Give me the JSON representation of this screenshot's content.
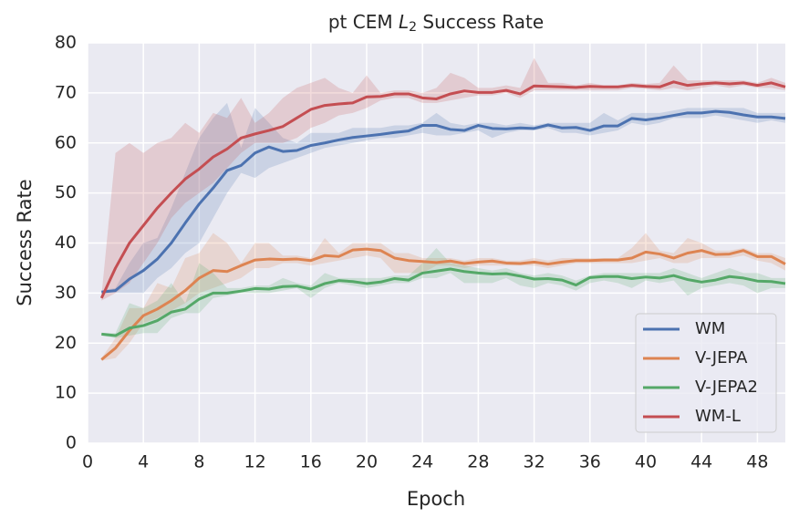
{
  "chart_data": {
    "type": "line",
    "title": [
      "pt CEM",
      "L",
      "2",
      "Success Rate"
    ],
    "x_label": "Epoch",
    "y_label": "Success Rate",
    "x": [
      1,
      2,
      3,
      4,
      5,
      6,
      7,
      8,
      9,
      10,
      11,
      12,
      13,
      14,
      15,
      16,
      17,
      18,
      19,
      20,
      21,
      22,
      23,
      24,
      25,
      26,
      27,
      28,
      29,
      30,
      31,
      32,
      33,
      34,
      35,
      36,
      37,
      38,
      39,
      40,
      41,
      42,
      43,
      44,
      45,
      46,
      47,
      48,
      49,
      50
    ],
    "xlim": [
      0,
      50
    ],
    "xticks": [
      0,
      4,
      8,
      12,
      16,
      20,
      24,
      28,
      32,
      36,
      40,
      44,
      48
    ],
    "ylim": [
      0,
      80
    ],
    "yticks": [
      0,
      10,
      20,
      30,
      40,
      50,
      60,
      70,
      80
    ],
    "grid": true,
    "legend": "lower right",
    "series": [
      {
        "name": "WM",
        "color": "#4c72b0",
        "values": [
          30.2,
          30.5,
          32.8,
          34.5,
          36.8,
          40,
          44,
          47.8,
          51,
          54.5,
          55.5,
          58,
          59.2,
          58.3,
          58.5,
          59.5,
          60,
          60.6,
          61.1,
          61.4,
          61.7,
          62.1,
          62.4,
          63.5,
          63.5,
          62.7,
          62.5,
          63.5,
          62.9,
          62.8,
          63,
          62.9,
          63.6,
          63,
          63.1,
          62.5,
          63.4,
          63.4,
          64.9,
          64.6,
          65,
          65.5,
          66,
          66,
          66.3,
          66.1,
          65.6,
          65.2,
          65.2,
          64.9
        ],
        "upper": [
          30.5,
          31,
          36,
          40,
          41,
          47,
          54,
          61,
          65,
          68,
          59,
          67,
          64,
          61,
          60,
          62,
          62,
          62,
          63,
          63,
          63,
          63.5,
          63.5,
          64,
          66,
          64,
          63.5,
          64,
          64,
          63.5,
          64,
          63.5,
          64,
          64,
          64,
          64,
          66,
          64.5,
          66,
          66,
          66,
          66.5,
          67,
          67,
          67,
          67,
          67,
          66,
          66,
          66
        ],
        "lower": [
          30,
          30,
          30,
          30,
          33,
          35,
          38,
          40,
          45,
          50,
          54,
          53,
          55,
          56,
          57,
          58,
          59,
          59.5,
          60,
          60.5,
          61,
          61,
          61.5,
          62,
          61.5,
          61.5,
          62,
          62.5,
          61,
          62,
          62.5,
          62.5,
          63,
          62,
          62,
          61.5,
          62,
          62.5,
          64,
          63.5,
          64,
          65,
          65,
          65,
          65.5,
          65,
          64.5,
          64,
          64.5,
          64
        ]
      },
      {
        "name": "V-JEPA",
        "color": "#dd8452",
        "values": [
          16.7,
          19,
          22.5,
          25.5,
          26.8,
          28.5,
          30.5,
          33,
          34.5,
          34.3,
          35.5,
          36.6,
          36.8,
          36.7,
          36.8,
          36.5,
          37.5,
          37.3,
          38.6,
          38.8,
          38.5,
          37,
          36.5,
          36.3,
          36.1,
          36.4,
          35.9,
          36.2,
          36.4,
          36,
          35.9,
          36.2,
          35.8,
          36.2,
          36.5,
          36.5,
          36.6,
          36.6,
          37,
          38.2,
          37.8,
          37,
          38,
          38.5,
          37.7,
          37.8,
          38.5,
          37.3,
          37.3,
          35.8
        ],
        "upper": [
          17,
          21,
          27,
          27,
          32,
          31,
          37,
          38,
          42,
          40,
          36,
          40,
          40,
          37.5,
          37.5,
          37,
          41,
          38,
          40,
          40,
          40,
          38,
          38,
          37,
          37,
          37,
          36.5,
          37,
          37,
          36.5,
          36.5,
          37,
          36.5,
          37,
          37,
          37,
          37,
          37,
          39,
          42,
          38.5,
          38,
          41,
          40,
          38.5,
          38.5,
          39,
          38,
          38,
          37
        ],
        "lower": [
          16.5,
          17,
          20,
          24,
          25,
          26.5,
          28,
          30,
          31,
          32,
          33,
          35,
          35,
          36,
          36,
          35.5,
          36,
          36.5,
          37,
          37.5,
          37,
          34,
          34,
          34,
          35.5,
          35.5,
          35,
          35.5,
          35.5,
          35.5,
          35.5,
          35.5,
          35,
          35.5,
          36,
          36,
          36,
          36,
          36,
          36.5,
          37,
          36,
          36,
          37,
          37,
          37,
          37.5,
          36.5,
          36,
          34.5
        ]
      },
      {
        "name": "V-JEPA2",
        "color": "#55a868",
        "values": [
          21.8,
          21.5,
          23,
          23.5,
          24.5,
          26.2,
          26.8,
          28.8,
          30,
          30,
          30.4,
          30.9,
          30.8,
          31.3,
          31.4,
          30.8,
          31.9,
          32.5,
          32.3,
          31.9,
          32.2,
          32.9,
          32.6,
          34,
          34.4,
          34.8,
          34.3,
          34,
          33.8,
          33.9,
          33.4,
          32.8,
          32.9,
          32.6,
          31.6,
          33.1,
          33.3,
          33.3,
          32.9,
          33.2,
          33,
          33.5,
          32.7,
          32.2,
          32.6,
          33.3,
          33,
          32.4,
          32.3,
          31.9
        ],
        "upper": [
          22,
          22,
          28,
          27,
          28.5,
          32,
          28,
          36,
          34,
          31,
          31,
          31.5,
          31.5,
          33,
          32,
          31.5,
          34,
          33,
          33,
          33,
          33,
          33.5,
          33.5,
          36,
          39,
          36,
          35.5,
          35,
          34.5,
          35,
          34,
          33.5,
          34,
          33.5,
          32.5,
          33.5,
          34,
          34,
          34,
          34,
          34,
          35,
          34,
          33,
          34,
          35,
          34,
          34,
          33,
          33
        ],
        "lower": [
          21.5,
          21,
          21.5,
          22,
          22,
          25,
          26,
          26,
          29,
          29.5,
          30,
          30,
          30,
          30.5,
          31,
          29,
          31,
          32,
          31.5,
          31,
          31.5,
          32,
          32,
          33,
          33,
          34,
          32,
          32,
          32,
          33,
          31.5,
          31,
          32,
          31.5,
          30.5,
          32,
          32.5,
          32,
          31,
          32.5,
          32,
          32.5,
          29.5,
          31,
          31.5,
          32,
          31.5,
          30,
          31,
          31
        ]
      },
      {
        "name": "WM-L",
        "color": "#c44e52",
        "values": [
          29,
          35,
          40,
          43.5,
          47,
          50,
          52.8,
          54.8,
          57.2,
          58.8,
          61,
          61.8,
          62.5,
          63.3,
          65,
          66.7,
          67.5,
          67.8,
          68,
          69.2,
          69.3,
          69.8,
          69.8,
          69,
          68.8,
          69.8,
          70.4,
          70.1,
          70.1,
          70.5,
          69.8,
          71.4,
          71.3,
          71.2,
          71.1,
          71.3,
          71.2,
          71.2,
          71.5,
          71.3,
          71.2,
          72.2,
          71.5,
          71.8,
          72,
          71.8,
          72,
          71.5,
          72,
          71.2
        ],
        "upper": [
          29.5,
          58,
          60,
          58,
          60,
          61,
          64,
          62,
          66,
          65,
          69,
          64,
          66,
          69,
          71,
          72,
          73,
          71,
          70,
          73.5,
          70,
          70.5,
          70.5,
          70,
          71,
          74,
          73,
          71,
          71,
          71.5,
          71,
          77,
          72,
          72,
          71.5,
          72,
          71.5,
          71.5,
          72,
          71.8,
          72,
          75.5,
          72.5,
          72.5,
          72.5,
          72.5,
          72.5,
          72,
          73,
          72
        ],
        "lower": [
          28.5,
          30,
          32,
          36,
          40,
          45,
          48,
          50,
          52,
          55,
          58,
          60,
          60,
          60,
          61,
          63,
          64,
          65.5,
          66,
          67,
          68.5,
          69,
          69,
          68,
          68,
          68.5,
          69,
          69.5,
          69.5,
          70,
          69,
          70.5,
          70.5,
          70.5,
          70.5,
          70.5,
          70.5,
          70.5,
          71,
          70.8,
          70.5,
          71,
          70.5,
          71,
          71.5,
          71,
          71.5,
          71,
          71,
          70.5
        ]
      }
    ]
  }
}
